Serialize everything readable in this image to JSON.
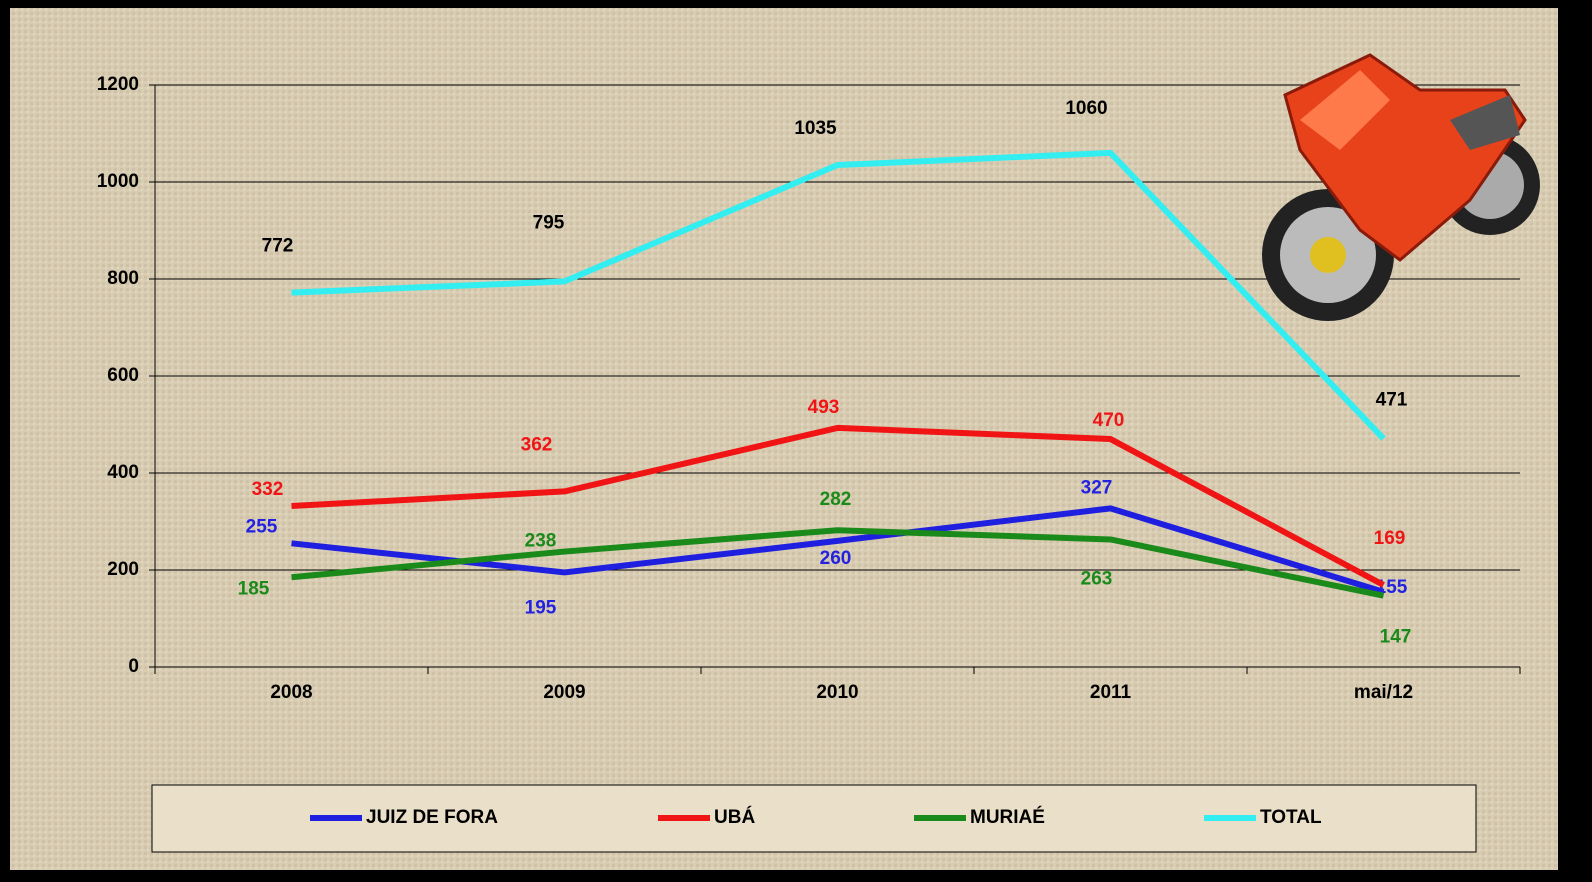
{
  "chart_data": {
    "type": "line",
    "categories": [
      "2008",
      "2009",
      "2010",
      "2011",
      "mai/12"
    ],
    "series": [
      {
        "name": "JUIZ DE FORA",
        "color": "#1f1fe0",
        "values": [
          255,
          195,
          260,
          327,
          155
        ]
      },
      {
        "name": "UBÁ",
        "color": "#f01414",
        "values": [
          332,
          362,
          493,
          470,
          169
        ]
      },
      {
        "name": "MURIAÉ",
        "color": "#1a8a1a",
        "values": [
          185,
          238,
          282,
          263,
          147
        ]
      },
      {
        "name": "TOTAL",
        "color": "#33eef0",
        "values": [
          772,
          795,
          1035,
          1060,
          471
        ]
      }
    ],
    "ylim": [
      0,
      1200
    ],
    "yticks": [
      0,
      200,
      400,
      600,
      800,
      1000,
      1200
    ],
    "grid": true
  }
}
